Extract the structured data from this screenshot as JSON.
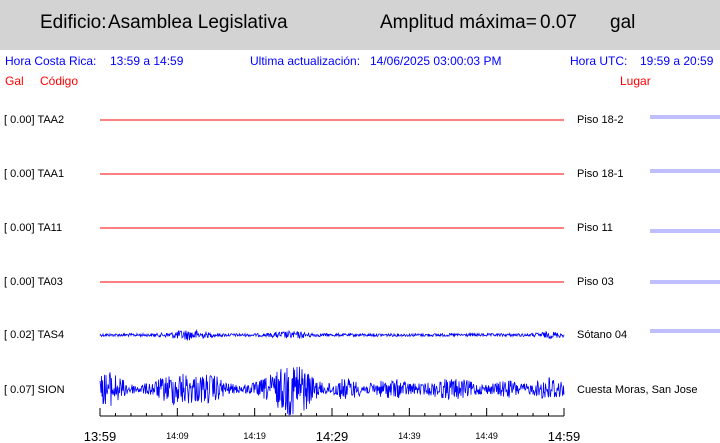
{
  "header": {
    "building_label": "Edificio:",
    "building_name": "Asamblea Legislativa",
    "amplitude_label": "Amplitud máxima=",
    "amplitude_value": "0.07",
    "amplitude_unit": "gal"
  },
  "info": {
    "local_label": "Hora Costa Rica:",
    "local_range": "13:59 a 14:59",
    "update_label": "Ultima actualización:",
    "update_value": "14/06/2025 03:00:03 PM",
    "utc_label": "Hora UTC:",
    "utc_range": "19:59 a 20:59"
  },
  "columns": {
    "gal": "Gal",
    "code": "Código",
    "place": "Lugar"
  },
  "colors": {
    "flat_trace": "#ff0000",
    "active_trace": "#0000ff",
    "header_bg": "#d3d3d3",
    "info_text": "#0000ff"
  },
  "chart_data": {
    "type": "line",
    "title": "",
    "xlabel": "",
    "ylabel": "",
    "x_ticks_major": [
      "13:59",
      "14:29",
      "14:59"
    ],
    "x_ticks_minor": [
      "14:09",
      "14:19",
      "14:39",
      "14:49"
    ],
    "series": [
      {
        "name": "TAA2",
        "amplitude_label": "[  0.00]",
        "place": "Piso 18-2",
        "max_gal": 0.0,
        "active": false
      },
      {
        "name": "TAA1",
        "amplitude_label": "[  0.00]",
        "place": "Piso 18-1",
        "max_gal": 0.0,
        "active": false
      },
      {
        "name": "TA11",
        "amplitude_label": "[  0.00]",
        "place": "Piso 11",
        "max_gal": 0.0,
        "active": false
      },
      {
        "name": "TA03",
        "amplitude_label": "[  0.00]",
        "place": "Piso 03",
        "max_gal": 0.0,
        "active": false
      },
      {
        "name": "TAS4",
        "amplitude_label": "[  0.02]",
        "place": "Sótano 04",
        "max_gal": 0.02,
        "active": true
      },
      {
        "name": "SION",
        "amplitude_label": "[  0.07]",
        "place": "Cuesta Moras, San Jose",
        "max_gal": 0.07,
        "active": true
      }
    ]
  }
}
